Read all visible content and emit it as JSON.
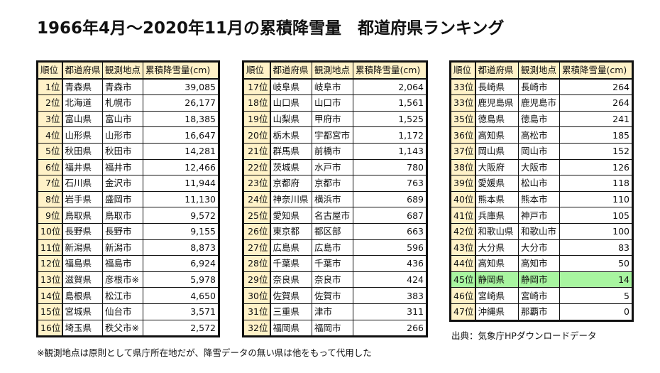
{
  "title": "1966年4月～2020年11月の累積降雪量　都道府県ランキング",
  "headers": [
    "順位",
    "都道府県",
    "観測地点",
    "累積降雪量(cm)"
  ],
  "tables": [
    [
      [
        "1位",
        "青森県",
        "青森市",
        "39,085"
      ],
      [
        "2位",
        "北海道",
        "札幌市",
        "26,177"
      ],
      [
        "3位",
        "富山県",
        "富山市",
        "18,385"
      ],
      [
        "4位",
        "山形県",
        "山形市",
        "16,647"
      ],
      [
        "5位",
        "秋田県",
        "秋田市",
        "14,281"
      ],
      [
        "6位",
        "福井県",
        "福井市",
        "12,466"
      ],
      [
        "7位",
        "石川県",
        "金沢市",
        "11,944"
      ],
      [
        "8位",
        "岩手県",
        "盛岡市",
        "11,130"
      ],
      [
        "9位",
        "鳥取県",
        "鳥取市",
        "9,572"
      ],
      [
        "10位",
        "長野県",
        "長野市",
        "9,155"
      ],
      [
        "11位",
        "新潟県",
        "新潟市",
        "8,873"
      ],
      [
        "12位",
        "福島県",
        "福島市",
        "6,924"
      ],
      [
        "13位",
        "滋賀県",
        "彦根市※",
        "5,978"
      ],
      [
        "14位",
        "島根県",
        "松江市",
        "4,650"
      ],
      [
        "15位",
        "宮城県",
        "仙台市",
        "3,571"
      ],
      [
        "16位",
        "埼玉県",
        "秩父市※",
        "2,572"
      ]
    ],
    [
      [
        "17位",
        "岐阜県",
        "岐阜市",
        "2,064"
      ],
      [
        "18位",
        "山口県",
        "山口市",
        "1,561"
      ],
      [
        "19位",
        "山梨県",
        "甲府市",
        "1,525"
      ],
      [
        "20位",
        "栃木県",
        "宇都宮市",
        "1,172"
      ],
      [
        "21位",
        "群馬県",
        "前橋市",
        "1,143"
      ],
      [
        "22位",
        "茨城県",
        "水戸市",
        "780"
      ],
      [
        "23位",
        "京都府",
        "京都市",
        "763"
      ],
      [
        "24位",
        "神奈川県",
        "横浜市",
        "689"
      ],
      [
        "25位",
        "愛知県",
        "名古屋市",
        "687"
      ],
      [
        "26位",
        "東京都",
        "都区部",
        "663"
      ],
      [
        "27位",
        "広島県",
        "広島市",
        "596"
      ],
      [
        "28位",
        "千葉県",
        "千葉市",
        "436"
      ],
      [
        "29位",
        "奈良県",
        "奈良市",
        "424"
      ],
      [
        "30位",
        "佐賀県",
        "佐賀市",
        "383"
      ],
      [
        "31位",
        "三重県",
        "津市",
        "311"
      ],
      [
        "32位",
        "福岡県",
        "福岡市",
        "266"
      ]
    ],
    [
      [
        "33位",
        "長崎県",
        "長崎市",
        "264"
      ],
      [
        "33位",
        "鹿児島県",
        "鹿児島市",
        "264"
      ],
      [
        "35位",
        "徳島県",
        "徳島市",
        "241"
      ],
      [
        "36位",
        "高知県",
        "高松市",
        "185"
      ],
      [
        "37位",
        "岡山県",
        "岡山市",
        "152"
      ],
      [
        "38位",
        "大阪府",
        "大阪市",
        "126"
      ],
      [
        "39位",
        "愛媛県",
        "松山市",
        "118"
      ],
      [
        "40位",
        "熊本県",
        "熊本市",
        "110"
      ],
      [
        "41位",
        "兵庫県",
        "神戸市",
        "105"
      ],
      [
        "42位",
        "和歌山県",
        "和歌山市",
        "100"
      ],
      [
        "43位",
        "大分県",
        "大分市",
        "83"
      ],
      [
        "44位",
        "高知県",
        "高知市",
        "50"
      ],
      [
        "45位",
        "静岡県",
        "静岡市",
        "14"
      ],
      [
        "46位",
        "宮崎県",
        "宮崎市",
        "5"
      ],
      [
        "47位",
        "沖縄県",
        "那覇市",
        "0"
      ]
    ]
  ],
  "highlight": {
    "table": 2,
    "row": 12,
    "color": "#a8f5a0"
  },
  "header_color": "#fff2c8",
  "note_left": "※観測地点は原則として県庁所在地だが、降雪データの無い県は他をもって代用した",
  "note_right": "出典：気象庁HPダウンロードデータ"
}
